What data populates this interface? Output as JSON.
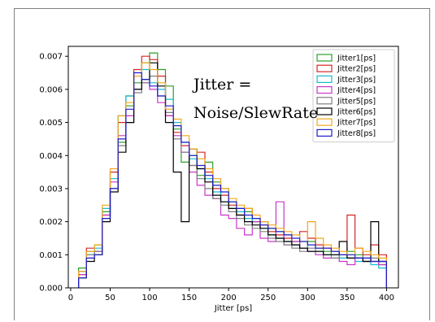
{
  "chart_data": {
    "type": "line",
    "style": "step-histogram",
    "title": "",
    "xlabel": "Jitter [ps]",
    "ylabel": "",
    "xlim": [
      -3,
      415
    ],
    "ylim": [
      0,
      0.0073
    ],
    "xticks": [
      0,
      50,
      100,
      150,
      200,
      250,
      300,
      350,
      400
    ],
    "yticks": [
      0.0,
      0.001,
      0.002,
      0.003,
      0.004,
      0.005,
      0.006,
      0.007
    ],
    "ytick_labels": [
      "0.000",
      "0.001",
      "0.002",
      "0.003",
      "0.004",
      "0.005",
      "0.006",
      "0.007"
    ],
    "grid": false,
    "legend_position": "top-right",
    "annotation": {
      "line1": "Jitter =",
      "line2": "Noise/SlewRate"
    },
    "bin_edges": [
      10,
      20,
      30,
      40,
      50,
      60,
      70,
      80,
      90,
      100,
      110,
      120,
      130,
      140,
      150,
      160,
      170,
      180,
      190,
      200,
      210,
      220,
      230,
      240,
      250,
      260,
      270,
      280,
      290,
      300,
      310,
      320,
      330,
      340,
      350,
      360,
      370,
      380,
      390,
      400
    ],
    "series": [
      {
        "name": "Jitter1[ps]",
        "color": "#2ca02c",
        "values": [
          0.0006,
          0.0011,
          0.0013,
          0.0023,
          0.003,
          0.0044,
          0.0055,
          0.0062,
          0.0068,
          0.0071,
          0.0066,
          0.0061,
          0.0048,
          0.0038,
          0.004,
          0.0034,
          0.0038,
          0.0032,
          0.003,
          0.0026,
          0.0024,
          0.0023,
          0.0021,
          0.002,
          0.0018,
          0.0017,
          0.0016,
          0.0014,
          0.0012,
          0.0014,
          0.0012,
          0.0011,
          0.001,
          0.0009,
          0.0011,
          0.001,
          0.0009,
          0.0008,
          0.0007
        ]
      },
      {
        "name": "Jitter2[ps]",
        "color": "#d62728",
        "values": [
          0.0004,
          0.0012,
          0.0011,
          0.0022,
          0.0035,
          0.005,
          0.0058,
          0.0066,
          0.007,
          0.0069,
          0.0064,
          0.0052,
          0.0047,
          0.0043,
          0.0037,
          0.0041,
          0.0035,
          0.003,
          0.0028,
          0.0025,
          0.0022,
          0.0024,
          0.002,
          0.0019,
          0.0017,
          0.0016,
          0.0015,
          0.0013,
          0.0017,
          0.0015,
          0.0013,
          0.0012,
          0.0011,
          0.001,
          0.0022,
          0.0012,
          0.001,
          0.0013,
          0.001
        ]
      },
      {
        "name": "Jitter3[ps]",
        "color": "#17becf",
        "values": [
          0.0005,
          0.001,
          0.0012,
          0.0024,
          0.0033,
          0.0052,
          0.0058,
          0.006,
          0.0066,
          0.0062,
          0.006,
          0.0057,
          0.005,
          0.0044,
          0.0039,
          0.0036,
          0.0033,
          0.0029,
          0.0026,
          0.0024,
          0.0023,
          0.0021,
          0.002,
          0.0018,
          0.0016,
          0.0015,
          0.0014,
          0.0013,
          0.0012,
          0.0011,
          0.0011,
          0.001,
          0.001,
          0.0009,
          0.0009,
          0.0008,
          0.0008,
          0.0007,
          0.0006
        ]
      },
      {
        "name": "Jitter4[ps]",
        "color": "#c837c8",
        "values": [
          0.0004,
          0.0009,
          0.0011,
          0.0022,
          0.0032,
          0.0046,
          0.0052,
          0.006,
          0.0062,
          0.006,
          0.0056,
          0.0052,
          0.0046,
          0.0041,
          0.0035,
          0.0031,
          0.0028,
          0.0027,
          0.0022,
          0.0021,
          0.0018,
          0.0016,
          0.002,
          0.0015,
          0.0014,
          0.0026,
          0.0013,
          0.0014,
          0.0012,
          0.0011,
          0.001,
          0.0009,
          0.0009,
          0.0008,
          0.0007,
          0.0009,
          0.0008,
          0.0008,
          0.0007
        ]
      },
      {
        "name": "Jitter5[ps]",
        "color": "#7f7f7f",
        "values": [
          0.0005,
          0.001,
          0.0011,
          0.0021,
          0.003,
          0.0043,
          0.005,
          0.0059,
          0.0062,
          0.0064,
          0.0058,
          0.0053,
          0.0045,
          0.0041,
          0.0037,
          0.0033,
          0.003,
          0.0027,
          0.0025,
          0.0023,
          0.0021,
          0.0019,
          0.0018,
          0.0017,
          0.0015,
          0.0014,
          0.0013,
          0.0012,
          0.0011,
          0.0012,
          0.0011,
          0.001,
          0.0009,
          0.001,
          0.0009,
          0.0009,
          0.0008,
          0.0009,
          0.0008
        ]
      },
      {
        "name": "Jitter6[ps]",
        "color": "#000000",
        "values": [
          0.0003,
          0.0008,
          0.001,
          0.002,
          0.0029,
          0.0041,
          0.005,
          0.006,
          0.0063,
          0.0068,
          0.0061,
          0.005,
          0.0035,
          0.002,
          0.0042,
          0.0036,
          0.0032,
          0.0028,
          0.0026,
          0.0024,
          0.0022,
          0.002,
          0.0019,
          0.0018,
          0.0016,
          0.0015,
          0.0014,
          0.0013,
          0.0012,
          0.0011,
          0.0011,
          0.001,
          0.001,
          0.0014,
          0.0009,
          0.0009,
          0.0008,
          0.002,
          0.0008
        ]
      },
      {
        "name": "Jitter7[ps]",
        "color": "#f2a81d",
        "values": [
          0.0005,
          0.0011,
          0.0013,
          0.0025,
          0.0036,
          0.0052,
          0.0056,
          0.0064,
          0.0068,
          0.0066,
          0.0062,
          0.0054,
          0.0051,
          0.0046,
          0.0042,
          0.0039,
          0.0036,
          0.0033,
          0.003,
          0.0027,
          0.0025,
          0.0024,
          0.0022,
          0.002,
          0.0019,
          0.0018,
          0.0017,
          0.0016,
          0.0014,
          0.002,
          0.0015,
          0.0013,
          0.0012,
          0.0011,
          0.001,
          0.0012,
          0.0011,
          0.001,
          0.0009
        ]
      },
      {
        "name": "Jitter8[ps]",
        "color": "#1f1fcc",
        "values": [
          0.0003,
          0.0009,
          0.001,
          0.0021,
          0.003,
          0.0045,
          0.0054,
          0.0065,
          0.0063,
          0.0061,
          0.0058,
          0.0055,
          0.0049,
          0.0044,
          0.004,
          0.0037,
          0.0034,
          0.0031,
          0.0029,
          0.0026,
          0.0024,
          0.0022,
          0.0021,
          0.0019,
          0.0018,
          0.0017,
          0.0016,
          0.0015,
          0.0014,
          0.0013,
          0.0012,
          0.0012,
          0.0011,
          0.001,
          0.001,
          0.0009,
          0.0009,
          0.0008,
          0.0008
        ]
      }
    ]
  }
}
